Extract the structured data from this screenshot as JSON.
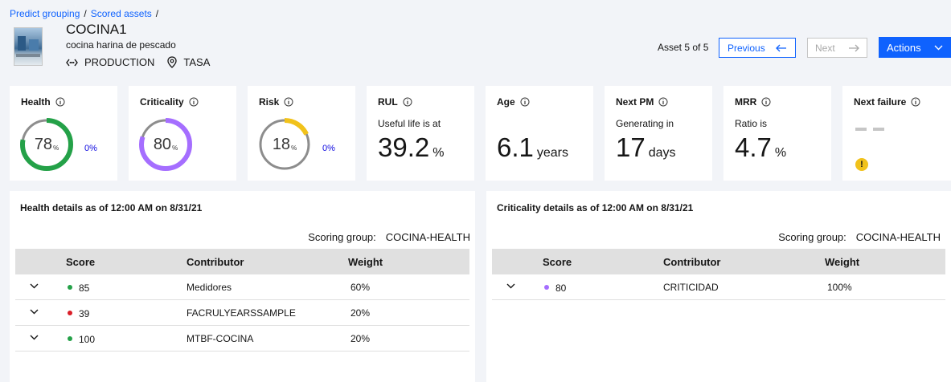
{
  "breadcrumb": {
    "item1": "Predict grouping",
    "item2": "Scored assets",
    "separator": "/"
  },
  "asset": {
    "title": "COCINA1",
    "description": "cocina harina de pescado",
    "status": "PRODUCTION",
    "location": "TASA",
    "thumbnail_icon": "asset-photo"
  },
  "navigation": {
    "asset_count": "Asset 5 of 5",
    "previous_label": "Previous",
    "next_label": "Next",
    "actions_label": "Actions"
  },
  "kpis": {
    "health": {
      "title": "Health",
      "value": "78",
      "pct": 78,
      "unit": "%",
      "delta": "0%",
      "color": "#24a148"
    },
    "criticality": {
      "title": "Criticality",
      "value": "80",
      "pct": 80,
      "unit": "%",
      "color": "#a56eff"
    },
    "risk": {
      "title": "Risk",
      "value": "18",
      "pct": 18,
      "unit": "%",
      "delta": "0%",
      "color": "#f1c21b"
    },
    "rul": {
      "title": "RUL",
      "label": "Useful life is at",
      "value": "39.2",
      "unit": "%"
    },
    "age": {
      "title": "Age",
      "value": "6.1",
      "unit": "years"
    },
    "next_pm": {
      "title": "Next PM",
      "label": "Generating in",
      "value": "17",
      "unit": "days"
    },
    "mrr": {
      "title": "MRR",
      "label": "Ratio is",
      "value": "4.7",
      "unit": "%"
    },
    "next_failure": {
      "title": "Next failure",
      "warning_icon": "!"
    }
  },
  "health_details": {
    "title": "Health details as of 12:00 AM on 8/31/21",
    "scoring_label": "Scoring group:",
    "scoring_group": "COCINA-HEALTH",
    "columns": {
      "score": "Score",
      "contributor": "Contributor",
      "weight": "Weight"
    },
    "rows": [
      {
        "score": "85",
        "contributor": "Medidores",
        "weight": "60%",
        "color": "#24a148"
      },
      {
        "score": "39",
        "contributor": "FACRULYEARSSAMPLE",
        "weight": "20%",
        "color": "#da1e28"
      },
      {
        "score": "100",
        "contributor": "MTBF-COCINA",
        "weight": "20%",
        "color": "#24a148"
      }
    ]
  },
  "criticality_details": {
    "title": "Criticality details as of 12:00 AM on 8/31/21",
    "scoring_label": "Scoring group:",
    "scoring_group": "COCINA-HEALTH",
    "columns": {
      "score": "Score",
      "contributor": "Contributor",
      "weight": "Weight"
    },
    "rows": [
      {
        "score": "80",
        "contributor": "CRITICIDAD",
        "weight": "100%",
        "color": "#a56eff"
      }
    ]
  }
}
